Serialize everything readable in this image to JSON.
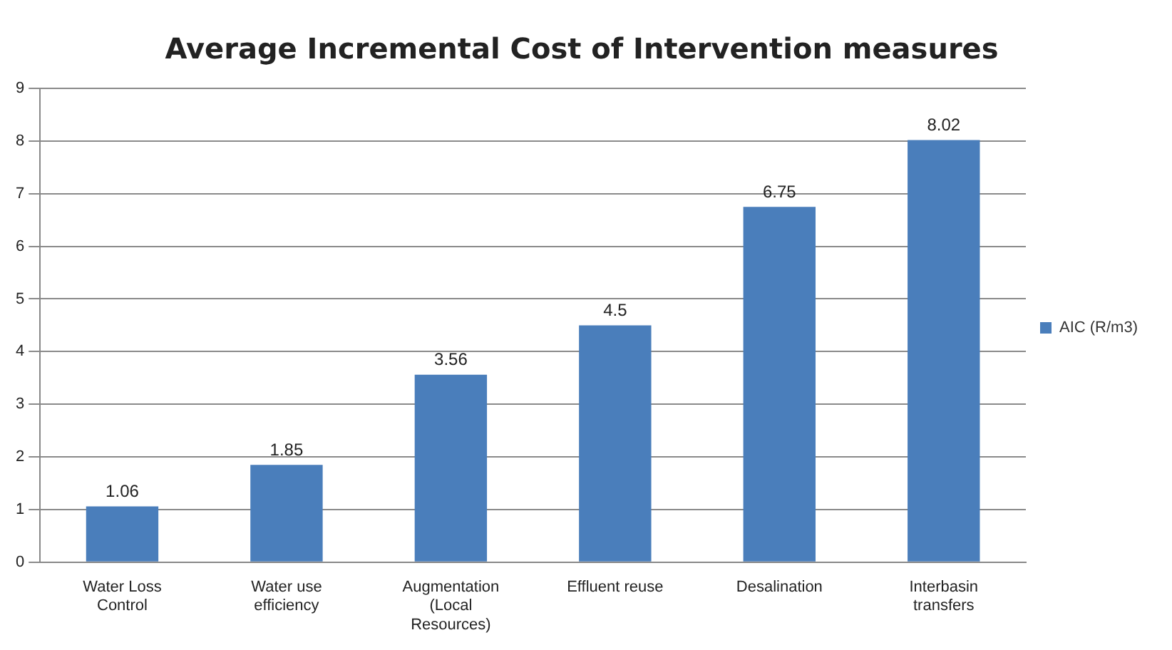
{
  "chart_data": {
    "type": "bar",
    "title": "Average Incremental Cost of Intervention measures",
    "categories": [
      "Water Loss Control",
      "Water use efficiency",
      "Augmentation (Local Resources)",
      "Effluent reuse",
      "Desalination",
      "Interbasin transfers"
    ],
    "series": [
      {
        "name": "AIC (R/m3)",
        "color": "#4a7ebb",
        "values": [
          1.06,
          1.85,
          3.56,
          4.5,
          6.75,
          8.02
        ]
      }
    ],
    "ylim": [
      0,
      9
    ],
    "yticks": [
      0,
      1,
      2,
      3,
      4,
      5,
      6,
      7,
      8,
      9
    ],
    "grid": "y",
    "legend": "right",
    "data_labels": true
  }
}
